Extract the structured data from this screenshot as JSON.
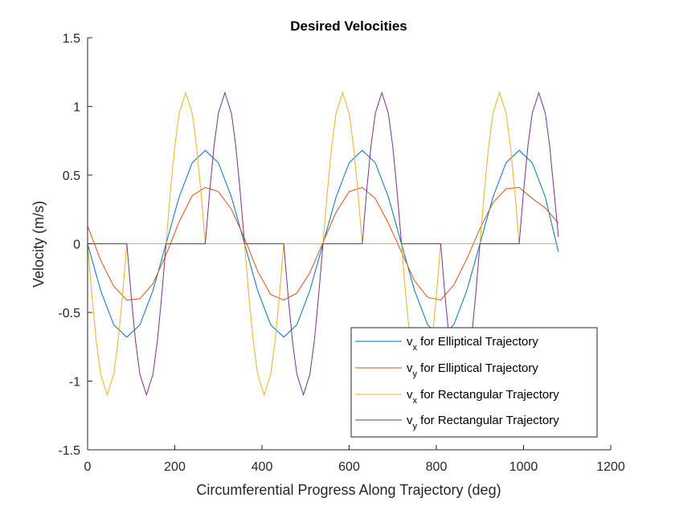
{
  "chart_data": {
    "type": "line",
    "title": "Desired Velocities",
    "xlabel": "Circumferential Progress Along Trajectory (deg)",
    "ylabel": "Velocity (m/s)",
    "xlim": [
      0,
      1200
    ],
    "ylim": [
      -1.5,
      1.5
    ],
    "xticks": [
      "0",
      "200",
      "400",
      "600",
      "800",
      "1000",
      "1200"
    ],
    "yticks": [
      "-1.5",
      "-1",
      "-0.5",
      "0",
      "0.5",
      "1",
      "1.5"
    ],
    "grid": false,
    "legend_position": "bottom-right",
    "series": [
      {
        "name": "v_x for Elliptical Trajectory",
        "legend_main": "v",
        "legend_sub": "x",
        "legend_rest": " for Elliptical Trajectory",
        "color": "#0072BD",
        "x": [
          0,
          30,
          60,
          90,
          120,
          150,
          180,
          210,
          240,
          270,
          300,
          330,
          360,
          390,
          420,
          450,
          480,
          510,
          540,
          570,
          600,
          630,
          660,
          690,
          720,
          750,
          780,
          810,
          840,
          870,
          900,
          930,
          960,
          990,
          1020,
          1050,
          1080
        ],
        "y": [
          0,
          -0.34,
          -0.59,
          -0.68,
          -0.59,
          -0.34,
          0,
          0.34,
          0.59,
          0.68,
          0.59,
          0.34,
          0,
          -0.34,
          -0.59,
          -0.68,
          -0.59,
          -0.34,
          0,
          0.34,
          0.59,
          0.68,
          0.59,
          0.34,
          0,
          -0.34,
          -0.59,
          -0.68,
          -0.59,
          -0.34,
          0,
          0.34,
          0.59,
          0.68,
          0.59,
          0.34,
          -0.06
        ]
      },
      {
        "name": "v_y for Elliptical Trajectory",
        "legend_main": "v",
        "legend_sub": "y",
        "legend_rest": " for Elliptical Trajectory",
        "color": "#D95319",
        "x": [
          0,
          30,
          60,
          90,
          120,
          150,
          180,
          210,
          240,
          270,
          300,
          330,
          360,
          390,
          420,
          450,
          480,
          510,
          540,
          570,
          600,
          630,
          660,
          690,
          720,
          750,
          780,
          810,
          840,
          870,
          900,
          930,
          960,
          990,
          1020,
          1050,
          1080
        ],
        "y": [
          0.13,
          -0.12,
          -0.31,
          -0.41,
          -0.4,
          -0.29,
          -0.08,
          0.16,
          0.35,
          0.41,
          0.38,
          0.25,
          0.04,
          -0.2,
          -0.37,
          -0.41,
          -0.36,
          -0.21,
          0.01,
          0.23,
          0.38,
          0.41,
          0.33,
          0.15,
          -0.06,
          -0.27,
          -0.39,
          -0.41,
          -0.3,
          -0.11,
          0.11,
          0.3,
          0.4,
          0.41,
          0.33,
          0.26,
          0.15
        ]
      },
      {
        "name": "v_x for Rectangular Trajectory",
        "legend_main": "v",
        "legend_sub": "x",
        "legend_rest": " for Rectangular Trajectory",
        "color": "#EDB120",
        "x": [
          0,
          10,
          20,
          30,
          45,
          60,
          70,
          80,
          90,
          120,
          150,
          180,
          190,
          200,
          210,
          225,
          240,
          250,
          260,
          270,
          300,
          330,
          360,
          370,
          380,
          390,
          405,
          420,
          430,
          440,
          450,
          480,
          510,
          540,
          550,
          560,
          570,
          585,
          600,
          610,
          620,
          630,
          660,
          690,
          720,
          730,
          740,
          750,
          765,
          780,
          790,
          800,
          810,
          840,
          870,
          900,
          910,
          920,
          930,
          945,
          960,
          970,
          980,
          990,
          1020,
          1050,
          1080
        ],
        "y": [
          0,
          -0.38,
          -0.71,
          -0.95,
          -1.1,
          -0.95,
          -0.71,
          -0.38,
          0,
          0,
          0,
          0,
          0.38,
          0.71,
          0.95,
          1.1,
          0.95,
          0.71,
          0.38,
          0,
          0,
          0,
          0,
          -0.38,
          -0.71,
          -0.95,
          -1.1,
          -0.95,
          -0.71,
          -0.38,
          0,
          0,
          0,
          0,
          0.38,
          0.71,
          0.95,
          1.1,
          0.95,
          0.71,
          0.38,
          0,
          0,
          0,
          0,
          -0.38,
          -0.71,
          -0.95,
          -1.1,
          -0.95,
          -0.71,
          -0.38,
          0,
          0,
          0,
          0,
          0.38,
          0.71,
          0.95,
          1.1,
          0.95,
          0.71,
          0.38,
          0,
          0,
          0,
          0
        ]
      },
      {
        "name": "v_y for Rectangular Trajectory",
        "legend_main": "v",
        "legend_sub": "y",
        "legend_rest": " for Rectangular Trajectory",
        "color": "#7E2F8E",
        "x": [
          0,
          30,
          60,
          90,
          100,
          110,
          120,
          135,
          150,
          160,
          170,
          180,
          210,
          240,
          270,
          280,
          290,
          300,
          315,
          330,
          340,
          350,
          360,
          390,
          420,
          450,
          460,
          470,
          480,
          495,
          510,
          520,
          530,
          540,
          570,
          600,
          630,
          640,
          650,
          660,
          675,
          690,
          700,
          710,
          720,
          750,
          780,
          810,
          820,
          830,
          840,
          855,
          870,
          880,
          890,
          900,
          930,
          960,
          990,
          1000,
          1010,
          1020,
          1035,
          1050,
          1060,
          1070,
          1080
        ],
        "y": [
          0,
          0,
          0,
          0,
          -0.38,
          -0.71,
          -0.95,
          -1.1,
          -0.95,
          -0.71,
          -0.38,
          0,
          0,
          0,
          0,
          0.38,
          0.71,
          0.95,
          1.1,
          0.95,
          0.71,
          0.38,
          0,
          0,
          0,
          0,
          -0.38,
          -0.71,
          -0.95,
          -1.1,
          -0.95,
          -0.71,
          -0.38,
          0,
          0,
          0,
          0,
          0.38,
          0.71,
          0.95,
          1.1,
          0.95,
          0.71,
          0.38,
          0,
          0,
          0,
          0,
          -0.38,
          -0.71,
          -0.95,
          -1.1,
          -0.95,
          -0.71,
          -0.38,
          0,
          0,
          0,
          0,
          0.38,
          0.71,
          0.95,
          1.1,
          0.95,
          0.71,
          0.38,
          0.05
        ]
      }
    ]
  }
}
